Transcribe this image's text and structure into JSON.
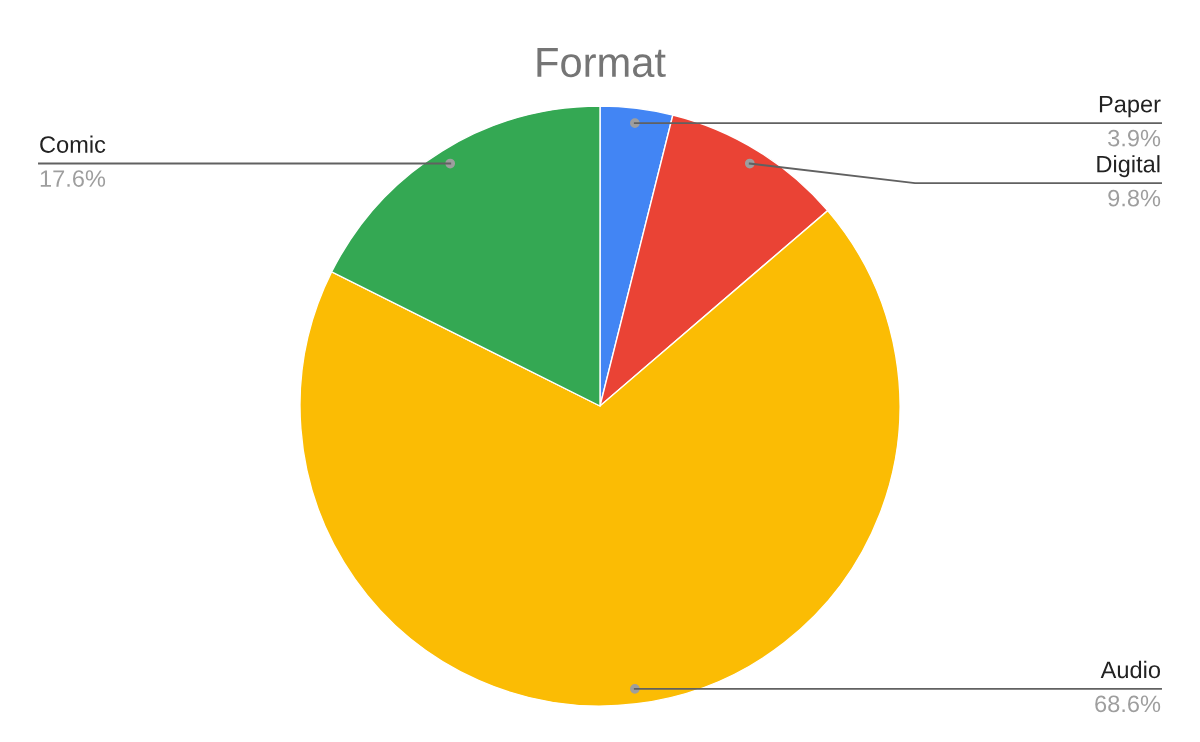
{
  "chart_data": {
    "type": "pie",
    "title": "Format",
    "categories": [
      "Paper",
      "Digital",
      "Audio",
      "Comic"
    ],
    "values": [
      3.9,
      9.8,
      68.6,
      17.6
    ],
    "colors": [
      "#4285f4",
      "#ea4335",
      "#fbbc04",
      "#34a853"
    ],
    "value_labels": [
      "3.9%",
      "9.8%",
      "68.6%",
      "17.6%"
    ],
    "legend": false
  }
}
